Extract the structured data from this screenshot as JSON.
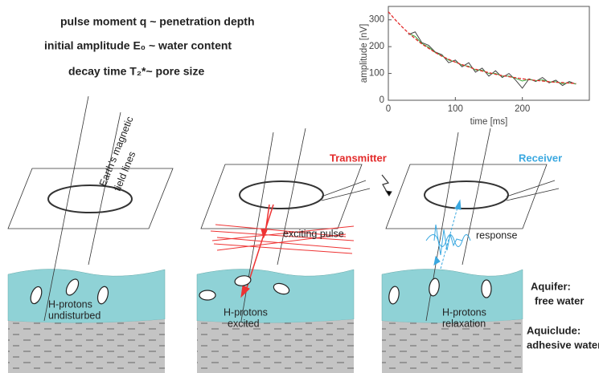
{
  "header": {
    "lines": [
      "pulse moment q ~ penetration depth",
      "initial amplitude E₀ ~ water content",
      "decay time T₂*~ pore size"
    ]
  },
  "chart": {
    "type": "line",
    "y_label": "amplitude [nV]",
    "x_label": "time [ms]",
    "xlim": [
      0,
      300
    ],
    "ylim": [
      0,
      350
    ],
    "xticks": [
      0,
      100,
      200
    ],
    "yticks": [
      0,
      100,
      200,
      300
    ],
    "x": [
      0,
      10,
      20,
      30,
      40,
      50,
      60,
      70,
      80,
      90,
      100,
      110,
      120,
      130,
      140,
      150,
      160,
      170,
      180,
      190,
      200,
      210,
      220,
      230,
      240,
      250,
      260,
      270,
      280
    ],
    "series": [
      {
        "color": "#444444",
        "values": [
          null,
          null,
          null,
          245,
          255,
          215,
          205,
          180,
          170,
          140,
          150,
          125,
          140,
          105,
          120,
          90,
          110,
          85,
          100,
          75,
          45,
          80,
          70,
          85,
          65,
          75,
          55,
          70,
          60
        ]
      },
      {
        "color": "#3aa83a",
        "values": [
          null,
          null,
          null,
          250,
          238,
          212,
          198,
          178,
          166,
          150,
          143,
          131,
          127,
          113,
          112,
          100,
          100,
          90,
          90,
          82,
          72,
          78,
          73,
          76,
          68,
          69,
          62,
          65,
          61
        ]
      },
      {
        "color": "#e32b2b",
        "values": [
          330,
          301,
          275,
          251,
          230,
          210,
          194,
          178,
          164,
          153,
          142,
          133,
          124,
          116,
          109,
          103,
          97,
          92,
          88,
          84,
          80,
          77,
          74,
          72,
          69,
          67,
          66,
          64,
          63
        ]
      }
    ]
  },
  "diagram": {
    "field_label": [
      "Earth's magnetic",
      "field lines"
    ],
    "transmitter": "Transmitter",
    "receiver": "Receiver",
    "exciting_pulse": "exciting pulse",
    "response": "response",
    "panels": [
      [
        "H-protons",
        "undisturbed"
      ],
      [
        "H-protons",
        "excited"
      ],
      [
        "H-protons",
        "relaxation"
      ]
    ],
    "aquifer": [
      "Aquifer:",
      "free water"
    ],
    "aquiclude": [
      "Aquiclude:",
      "adhesive water"
    ]
  }
}
